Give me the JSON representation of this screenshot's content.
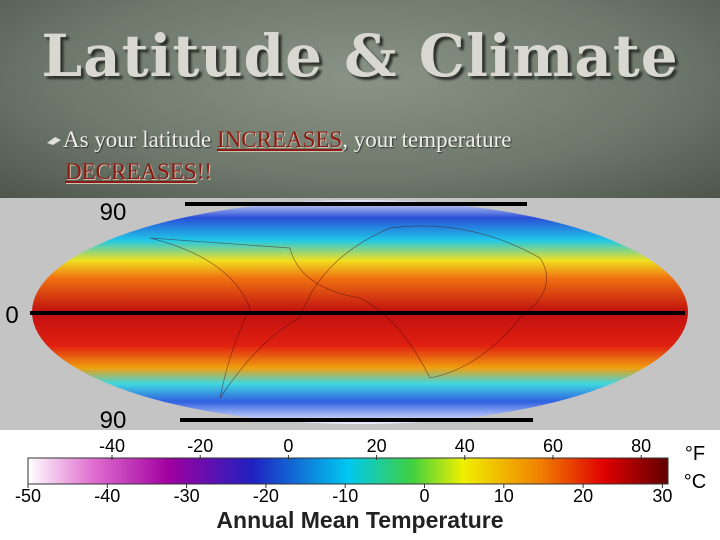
{
  "title": "Latitude & Climate",
  "bullet": {
    "parts": [
      "As your latitude ",
      "INCREASES",
      ", your temperature ",
      "DECREASES",
      "!!"
    ]
  },
  "latitude_labels": {
    "top": "90",
    "equator": "0",
    "bottom": "90"
  },
  "colorbar": {
    "fahrenheit_ticks": [
      -40,
      -20,
      0,
      20,
      40,
      60,
      80
    ],
    "celsius_ticks": [
      -50,
      -40,
      -30,
      -20,
      -10,
      0,
      10,
      20,
      30
    ],
    "fahrenheit_unit": "°F",
    "celsius_unit": "°C",
    "caption": "Annual Mean Temperature"
  }
}
